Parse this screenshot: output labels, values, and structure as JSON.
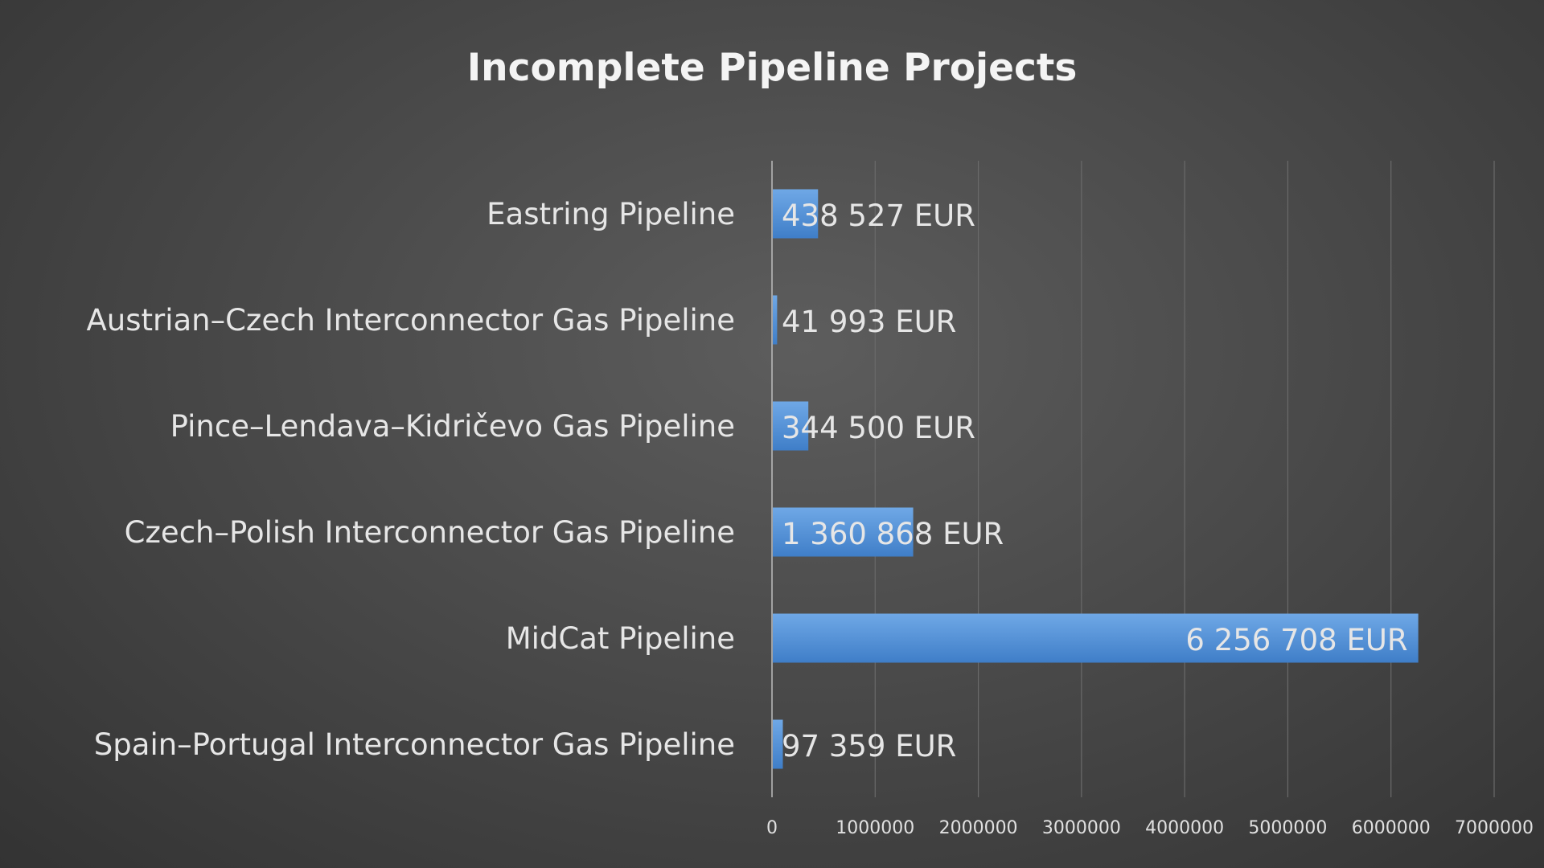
{
  "chart_data": {
    "type": "bar",
    "orientation": "horizontal",
    "title": "Incomplete Pipeline Projects",
    "xlabel": "",
    "ylabel": "",
    "categories": [
      "Eastring Pipeline",
      "Austrian–Czech Interconnector Gas Pipeline",
      "Pince–Lendava–Kidričevo Gas Pipeline",
      "Czech–Polish Interconnector Gas Pipeline",
      "MidCat Pipeline",
      "Spain–Portugal Interconnector Gas Pipeline"
    ],
    "values": [
      438527,
      41993,
      344500,
      1360868,
      6256708,
      97359
    ],
    "data_labels": [
      "438 527 EUR",
      "41 993 EUR",
      "344 500 EUR",
      "1 360 868 EUR",
      "6 256 708 EUR",
      "97 359 EUR"
    ],
    "xlim": [
      0,
      7000000
    ],
    "ticks": [
      "0",
      "1000000",
      "2000000",
      "3000000",
      "4000000",
      "5000000",
      "6000000",
      "7000000"
    ],
    "tick_values": [
      0,
      1000000,
      2000000,
      3000000,
      4000000,
      5000000,
      6000000,
      7000000
    ],
    "grid": true,
    "legend": "none",
    "colors": {
      "bar_top": "#6fa8e6",
      "bar_bottom": "#3f7ec8",
      "background_center": "#5d5d5d",
      "background_edge": "#333333",
      "text": "#e6e6e6"
    }
  }
}
